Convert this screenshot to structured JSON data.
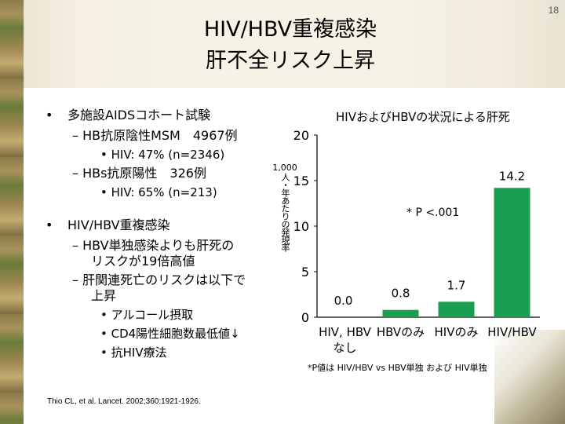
{
  "slide": {
    "page_number": "18",
    "title_line1": "HIV/HBV重複感染",
    "title_line2": "肝不全リスク上昇"
  },
  "bullets": {
    "b1": "•",
    "b1_text": "多施設AIDSコホート試験",
    "b1_sub1": "– HB抗原陰性MSM　4967例",
    "b1_sub1_sub": "• HIV: 47% (n=2346)",
    "b1_sub2": "– HBs抗原陽性　326例",
    "b1_sub2_sub": "• HIV: 65% (n=213)",
    "b2": "•",
    "b2_text": "HIV/HBV重複感染",
    "b2_sub1_l1": "– HBV単独感染よりも肝死の",
    "b2_sub1_l2": "リスクが19倍高値",
    "b2_sub2_l1": "– 肝関連死亡のリスクは以下で",
    "b2_sub2_l2": "上昇",
    "b2_sub2_i1": "• アルコール摂取",
    "b2_sub2_i2": "• CD4陽性細胞数最低値↓",
    "b2_sub2_i3": "• 抗HIV療法"
  },
  "chart_data": {
    "type": "bar",
    "title": "HIVおよびHBVの状況による肝死",
    "ylabel_top": "1,000",
    "ylabel_vertical": "人・年あたりの発現率",
    "categories": [
      "HIV, HBV\nなし",
      "HBVのみ",
      "HIVのみ",
      "HIV/HBV"
    ],
    "category_lines": [
      [
        "HIV, HBV",
        "なし"
      ],
      [
        "HBVのみ"
      ],
      [
        "HIVのみ"
      ],
      [
        "HIV/HBV"
      ]
    ],
    "values": [
      0.0,
      0.8,
      1.7,
      14.2
    ],
    "value_labels": [
      "0.0",
      "0.8",
      "1.7",
      "14.2"
    ],
    "ylim": [
      0,
      20
    ],
    "yticks": [
      "0",
      "5",
      "10",
      "15",
      "20"
    ],
    "bar_color": "#1a9e52",
    "annotation": "* P <.001"
  },
  "footnote": "*P値は HIV/HBV vs HBV単独 および HIV単独",
  "citation": "Thio CL, et al. Lancet. 2002;360:1921-1926."
}
